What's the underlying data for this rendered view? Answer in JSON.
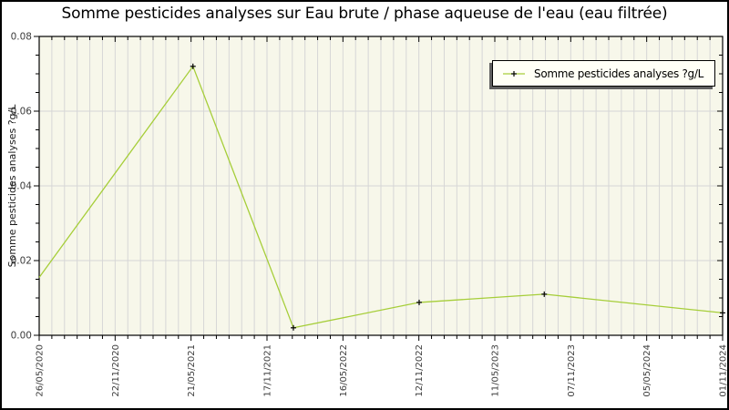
{
  "title": "Somme pesticides analyses sur Eau brute / phase aqueuse de l'eau (eau filtrée)",
  "y_axis_label": "Somme pesticides analyses ?g/L",
  "legend": {
    "label": "Somme pesticides analyses ?g/L"
  },
  "chart_data": {
    "type": "line",
    "title": "Somme pesticides analyses sur Eau brute / phase aqueuse de l'eau (eau filtrée)",
    "xlabel": "",
    "ylabel": "Somme pesticides analyses ?g/L",
    "ylim": [
      0,
      0.08
    ],
    "y_major_ticks": [
      "0.00",
      "0.02",
      "0.04",
      "0.06",
      "0.08"
    ],
    "y_minor_step": 0.005,
    "x_tick_labels": [
      "26/05/2020",
      "22/11/2020",
      "21/05/2021",
      "17/11/2021",
      "16/05/2022",
      "12/11/2022",
      "11/05/2023",
      "07/11/2023",
      "05/05/2024",
      "01/11/2024"
    ],
    "x_minor_divisions_per_major": 6,
    "grid": "vertical lines at every minor (monthly) tick, horizontal lines at major y ticks",
    "legend_position": "top-right-inside",
    "plot_bg_color": "#f7f7ea",
    "grid_color": "#d6d6d6",
    "axis_color": "#000000",
    "tick_label_color": "#3c3c3c",
    "series": [
      {
        "name": "Somme pesticides analyses ?g/L",
        "color": "#a6ce39",
        "marker": "plus",
        "marker_color": "#000000",
        "points": [
          {
            "x_frac": 0.0,
            "value": 0.0155,
            "date": "26/05/2020",
            "show_marker": false
          },
          {
            "x_frac": 0.225,
            "value": 0.072,
            "date": "21/05/2021",
            "show_marker": true
          },
          {
            "x_frac": 0.372,
            "value": 0.002,
            "date": "",
            "show_marker": true
          },
          {
            "x_frac": 0.556,
            "value": 0.0088,
            "date": "12/11/2022",
            "show_marker": true
          },
          {
            "x_frac": 0.739,
            "value": 0.011,
            "date": "",
            "show_marker": true
          },
          {
            "x_frac": 1.0,
            "value": 0.006,
            "date": "01/11/2024",
            "show_marker": true
          }
        ]
      }
    ]
  }
}
